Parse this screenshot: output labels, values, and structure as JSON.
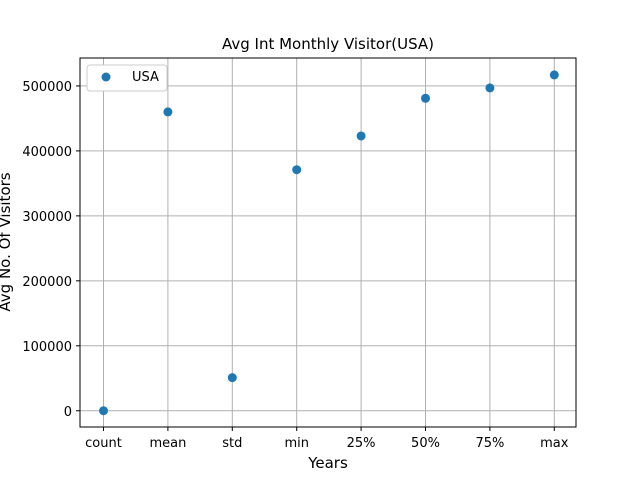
{
  "chart_data": {
    "type": "scatter",
    "title": "Avg Int Monthly Visitor(USA)",
    "xlabel": "Years",
    "ylabel": "Avg No. Of Visitors",
    "categories": [
      "count",
      "mean",
      "std",
      "min",
      "25%",
      "50%",
      "75%",
      "max"
    ],
    "series": [
      {
        "name": "USA",
        "color": "#1f77b4",
        "values": [
          12,
          460000,
          51000,
          371000,
          423000,
          481000,
          497000,
          517000
        ]
      }
    ],
    "ylim": [
      -25000,
      543000
    ],
    "yticks": [
      0,
      100000,
      200000,
      300000,
      400000,
      500000
    ],
    "ytick_labels": [
      "0",
      "100000",
      "200000",
      "300000",
      "400000",
      "500000"
    ],
    "grid": true,
    "legend_position": "top-left"
  }
}
